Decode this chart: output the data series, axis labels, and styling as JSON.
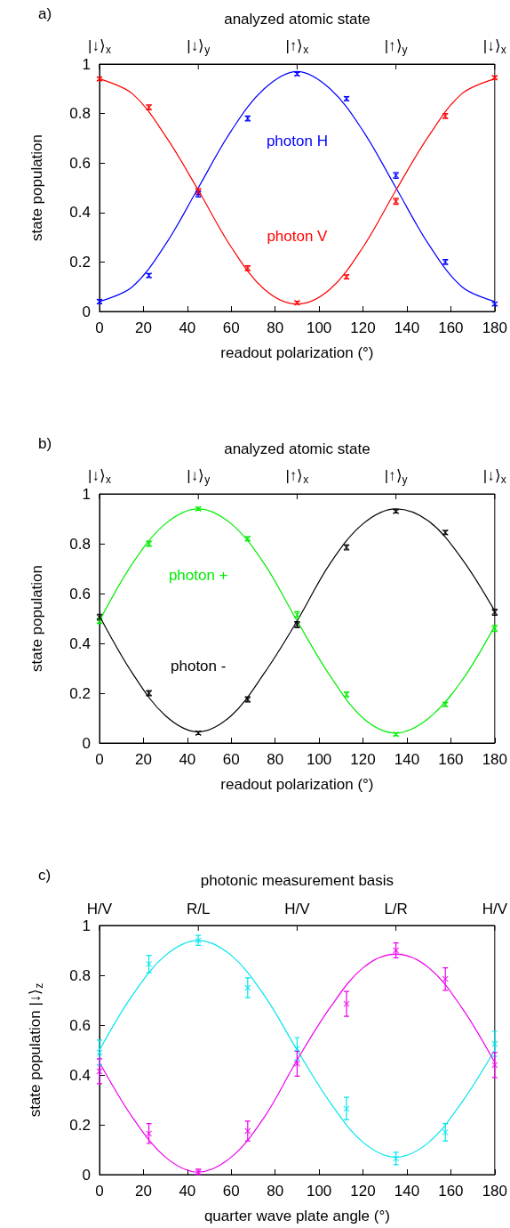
{
  "chart_data": [
    {
      "type": "scatter",
      "title": "a)",
      "xlabel": "readout polarization (°)",
      "ylabel": "state population",
      "x2label": "analyzed atomic state",
      "x": [
        0,
        22.5,
        45,
        67.5,
        90,
        112.5,
        135,
        157.5,
        180
      ],
      "xlim": [
        0,
        180
      ],
      "xticks": [
        0,
        20,
        40,
        60,
        80,
        100,
        120,
        140,
        160,
        180
      ],
      "ylim": [
        0,
        1
      ],
      "yticks": [
        0,
        0.2,
        0.4,
        0.6,
        0.8,
        1
      ],
      "annotations": [
        "|↓⟩$_{x}$",
        "|↓⟩$_{y}$",
        "|↑⟩$_{x}$",
        "|↑⟩$_{y}$",
        "|↓⟩$_{x}$"
      ],
      "marker": "cross",
      "line_style": "solid",
      "series": [
        {
          "name": "photon H",
          "color": "#0000ff",
          "values": [
            0.04,
            0.145,
            0.475,
            0.78,
            0.96,
            0.86,
            0.55,
            0.2,
            0.03
          ],
          "errors": [
            0.008,
            0.008,
            0.012,
            0.01,
            0.006,
            0.008,
            0.012,
            0.01,
            0.006
          ]
        },
        {
          "name": "photon V",
          "color": "#ff0000",
          "values": [
            0.94,
            0.825,
            0.485,
            0.175,
            0.035,
            0.14,
            0.445,
            0.79,
            0.945
          ],
          "errors": [
            0.006,
            0.01,
            0.012,
            0.01,
            0.006,
            0.008,
            0.012,
            0.01,
            0.006
          ]
        },
        {
          "type": "line",
          "marker": "none",
          "color": "#0000ff",
          "x": [
            0,
            15,
            30,
            45,
            60,
            75,
            90,
            105,
            120,
            135,
            150,
            165,
            180
          ],
          "values": [
            0.04,
            0.1,
            0.27,
            0.5,
            0.73,
            0.9,
            0.97,
            0.9,
            0.73,
            0.5,
            0.27,
            0.1,
            0.04
          ]
        },
        {
          "type": "line",
          "marker": "none",
          "color": "#ff0000",
          "x": [
            0,
            15,
            30,
            45,
            60,
            75,
            90,
            105,
            120,
            135,
            150,
            165,
            180
          ],
          "values": [
            0.94,
            0.88,
            0.71,
            0.49,
            0.26,
            0.09,
            0.03,
            0.09,
            0.26,
            0.49,
            0.71,
            0.88,
            0.94
          ]
        }
      ]
    },
    {
      "type": "scatter",
      "title": "b)",
      "xlabel": "readout polarization (°)",
      "ylabel": "state population",
      "x2label": "analyzed atomic state",
      "x": [
        0,
        22.5,
        45,
        67.5,
        90,
        112.5,
        135,
        157.5,
        180
      ],
      "xlim": [
        0,
        180
      ],
      "xticks": [
        0,
        20,
        40,
        60,
        80,
        100,
        120,
        140,
        160,
        180
      ],
      "ylim": [
        0,
        1
      ],
      "yticks": [
        0,
        0.2,
        0.4,
        0.6,
        0.8,
        1
      ],
      "annotations": [
        "|↓⟩$_{x}$",
        "|↓⟩$_{y}$",
        "|↑⟩$_{x}$",
        "|↑⟩$_{y}$",
        "|↓⟩$_{x}$"
      ],
      "marker": "cross",
      "line_style": "solid",
      "series": [
        {
          "name": "photon +",
          "color": "#00ee00",
          "values": [
            0.49,
            0.8,
            0.94,
            0.82,
            0.515,
            0.195,
            0.035,
            0.155,
            0.46
          ],
          "errors": [
            0.01,
            0.01,
            0.006,
            0.008,
            0.012,
            0.01,
            0.006,
            0.008,
            0.012
          ]
        },
        {
          "name": "photon -",
          "color": "#000000",
          "values": [
            0.505,
            0.2,
            0.04,
            0.175,
            0.475,
            0.785,
            0.93,
            0.845,
            0.525
          ],
          "errors": [
            0.012,
            0.01,
            0.006,
            0.01,
            0.012,
            0.01,
            0.006,
            0.008,
            0.012
          ]
        },
        {
          "type": "line",
          "marker": "none",
          "color": "#00ee00",
          "x": [
            0,
            15,
            30,
            45,
            60,
            75,
            90,
            105,
            120,
            135,
            150,
            165,
            180
          ],
          "values": [
            0.49,
            0.72,
            0.88,
            0.94,
            0.88,
            0.72,
            0.49,
            0.27,
            0.1,
            0.04,
            0.1,
            0.25,
            0.47
          ]
        },
        {
          "type": "line",
          "marker": "none",
          "color": "#000000",
          "x": [
            0,
            15,
            30,
            45,
            60,
            75,
            90,
            105,
            120,
            135,
            150,
            165,
            180
          ],
          "values": [
            0.51,
            0.28,
            0.11,
            0.045,
            0.11,
            0.28,
            0.49,
            0.72,
            0.88,
            0.94,
            0.89,
            0.74,
            0.53
          ]
        }
      ]
    },
    {
      "type": "scatter",
      "title": "c)",
      "xlabel": "quarter wave plate angle (°)",
      "ylabel": "state population |↓⟩$_{z}$",
      "x2label": "photonic measurement basis",
      "x": [
        0,
        22.5,
        45,
        67.5,
        90,
        112.5,
        135,
        157.5,
        180
      ],
      "xlim": [
        0,
        180
      ],
      "xticks": [
        0,
        20,
        40,
        60,
        80,
        100,
        120,
        140,
        160,
        180
      ],
      "ylim": [
        0,
        1
      ],
      "yticks": [
        0,
        0.2,
        0.4,
        0.6,
        0.8,
        1
      ],
      "annotations": [
        "H/V",
        "R/L",
        "H/V",
        "L/R",
        "H/V"
      ],
      "marker": "cross",
      "line_style": "solid",
      "series": [
        {
          "color": "#00e5ee",
          "values": [
            0.49,
            0.845,
            0.94,
            0.75,
            0.505,
            0.265,
            0.065,
            0.17,
            0.525
          ],
          "errors": [
            0.05,
            0.035,
            0.02,
            0.04,
            0.045,
            0.045,
            0.025,
            0.035,
            0.05
          ]
        },
        {
          "color": "#ee00ee",
          "values": [
            0.415,
            0.165,
            0.01,
            0.175,
            0.445,
            0.685,
            0.9,
            0.785,
            0.44
          ],
          "errors": [
            0.05,
            0.04,
            [
              0,
              0.022
            ],
            0.04,
            0.05,
            0.05,
            0.03,
            0.045,
            0.05
          ]
        },
        {
          "type": "line",
          "marker": "none",
          "color": "#00e5ee",
          "x": [
            0,
            15,
            30,
            45,
            60,
            75,
            90,
            105,
            120,
            135,
            150,
            165,
            180
          ],
          "values": [
            0.5,
            0.72,
            0.88,
            0.94,
            0.88,
            0.72,
            0.5,
            0.29,
            0.13,
            0.07,
            0.13,
            0.29,
            0.5
          ]
        },
        {
          "type": "line",
          "marker": "none",
          "color": "#ee00ee",
          "x": [
            0,
            15,
            30,
            45,
            60,
            75,
            90,
            105,
            120,
            135,
            150,
            165,
            180
          ],
          "values": [
            0.45,
            0.23,
            0.07,
            0.01,
            0.07,
            0.23,
            0.46,
            0.67,
            0.83,
            0.885,
            0.83,
            0.67,
            0.45
          ]
        }
      ]
    }
  ]
}
